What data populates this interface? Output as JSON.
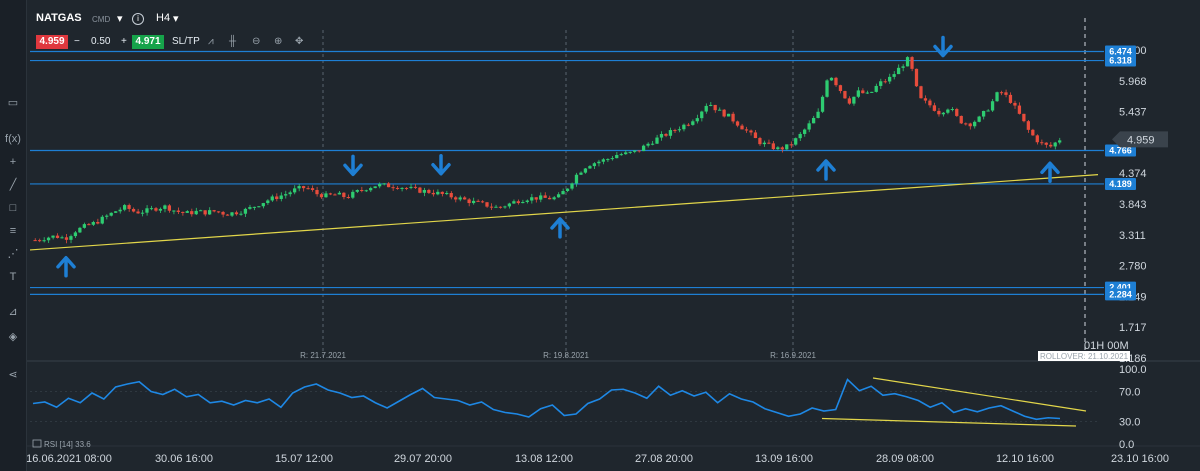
{
  "toolbar": {
    "symbol": "NATGAS",
    "symbol_type": "CMD",
    "timeframe": "H4",
    "sell_price": "4.959",
    "spread_minus": "−",
    "spread": "0.50",
    "spread_plus": "+",
    "buy_price": "4.971",
    "sltp": "SL/TP"
  },
  "colors": {
    "background": "#1f262d",
    "bull": "#2ecc71",
    "bear": "#e74c3c",
    "level_line": "#1e7fd4",
    "trend_line": "#e2d64a",
    "rsi_line": "#1e88e5",
    "arrow": "#1e7fd4"
  },
  "chart_data": [
    {
      "type": "candlestick",
      "instrument": "NATGAS",
      "timeframe": "H4",
      "current_price": 4.959,
      "y_ticks": [
        "6.500",
        "5.968",
        "5.437",
        "4.905",
        "4.374",
        "3.843",
        "3.311",
        "2.780",
        "2.249",
        "1.717",
        "1.186"
      ],
      "ylim": [
        1.186,
        6.55
      ],
      "price_path": [
        3.22,
        3.26,
        3.29,
        3.25,
        3.38,
        3.46,
        3.52,
        3.62,
        3.72,
        3.79,
        3.7,
        3.72,
        3.77,
        3.8,
        3.72,
        3.68,
        3.71,
        3.7,
        3.72,
        3.67,
        3.7,
        3.74,
        3.82,
        3.9,
        3.96,
        4.02,
        4.1,
        4.13,
        4.02,
        3.98,
        4.01,
        3.96,
        4.05,
        4.12,
        4.17,
        4.16,
        4.15,
        4.12,
        4.08,
        4.06,
        4.03,
        3.99,
        3.95,
        3.9,
        3.86,
        3.82,
        3.78,
        3.83,
        3.9,
        3.94,
        3.95,
        3.94,
        3.95,
        4.13,
        4.37,
        4.52,
        4.57,
        4.62,
        4.7,
        4.71,
        4.76,
        4.88,
        4.98,
        5.06,
        5.15,
        5.24,
        5.38,
        5.6,
        5.45,
        5.36,
        5.22,
        5.08,
        4.92,
        4.85,
        4.79,
        4.84,
        5.0,
        5.2,
        5.42,
        6.12,
        5.85,
        5.6,
        5.78,
        5.72,
        5.92,
        6.0,
        6.18,
        6.36,
        5.66,
        5.56,
        5.42,
        5.52,
        5.28,
        5.22,
        5.32,
        5.52,
        5.8,
        5.65,
        5.38,
        5.08,
        4.9,
        4.82,
        4.96
      ],
      "horizontal_levels": [
        {
          "value": 6.474,
          "label": "6.474"
        },
        {
          "value": 6.318,
          "label": "6.318"
        },
        {
          "value": 4.766,
          "label": "4.766"
        },
        {
          "value": 4.189,
          "label": "4.189"
        },
        {
          "value": 2.401,
          "label": "2.401"
        },
        {
          "value": 2.284,
          "label": "2.284"
        }
      ],
      "trendline": {
        "from": {
          "x": "16.06.2021 08:00",
          "y": 3.05
        },
        "to": {
          "x": "23.10 16:00",
          "y": 4.35
        }
      },
      "arrows_down_at": [
        4.32,
        4.33,
        6.37
      ],
      "arrows_up_at": [
        2.95,
        3.62,
        4.62,
        4.58
      ],
      "vertical_markers": [
        "R: 21.7.2021",
        "R: 19.8.2021",
        "R: 16.9.2021"
      ],
      "rollover_label": "ROLLOVER: 21.10.2021",
      "countdown": "01H 00M",
      "current_price_label": "4.959"
    },
    {
      "type": "line",
      "indicator": "RSI",
      "legend": "RSI [14] 33.6",
      "y_ticks": [
        "100.0",
        "70.0",
        "30.0",
        "0.0"
      ],
      "ylim": [
        0,
        100
      ],
      "overbought": 70,
      "oversold": 30,
      "values": [
        54,
        56,
        49,
        61,
        55,
        68,
        60,
        76,
        80,
        83,
        70,
        66,
        73,
        63,
        66,
        55,
        57,
        52,
        58,
        55,
        60,
        49,
        68,
        76,
        80,
        72,
        68,
        62,
        64,
        55,
        48,
        57,
        66,
        74,
        62,
        60,
        58,
        52,
        56,
        46,
        42,
        40,
        36,
        47,
        52,
        38,
        40,
        54,
        60,
        72,
        73,
        68,
        61,
        77,
        65,
        71,
        64,
        69,
        55,
        67,
        60,
        56,
        47,
        42,
        37,
        40,
        48,
        44,
        46,
        86,
        71,
        77,
        65,
        67,
        63,
        58,
        49,
        55,
        42,
        47,
        43,
        48,
        51,
        44,
        37,
        33,
        35,
        34
      ],
      "trendline_upper": {
        "from": 88,
        "to": 44
      },
      "trendline_lower": {
        "from": 34,
        "to": 24
      }
    }
  ],
  "x_ticks": [
    "16.06.2021 08:00",
    "30.06 16:00",
    "15.07 12:00",
    "29.07 20:00",
    "13.08 12:00",
    "27.08 20:00",
    "13.09 16:00",
    "28.09 08:00",
    "12.10 16:00",
    "23.10 16:00"
  ]
}
